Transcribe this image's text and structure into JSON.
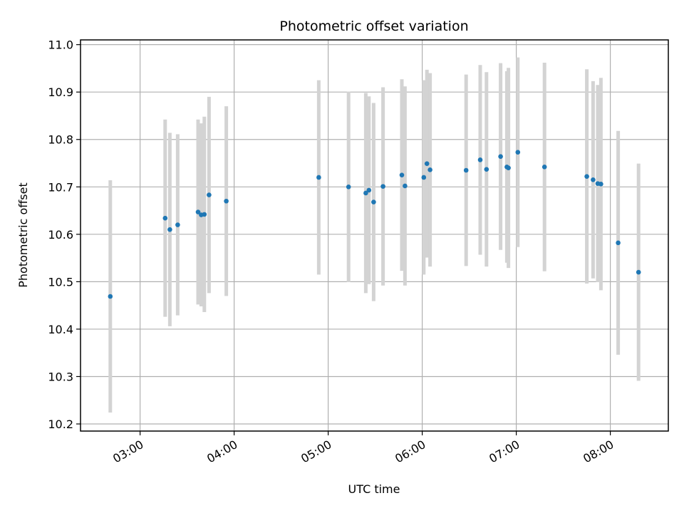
{
  "chart_data": {
    "type": "scatter",
    "title": "Photometric offset variation",
    "xlabel": "UTC time",
    "ylabel": "Photometric offset",
    "grid": true,
    "x_unit": "UTC time (HH:MM)",
    "xlim": [
      "02:22",
      "08:37"
    ],
    "ylim": [
      10.185,
      11.01
    ],
    "x_ticks": [
      "03:00",
      "04:00",
      "05:00",
      "06:00",
      "07:00",
      "08:00"
    ],
    "y_ticks": [
      10.2,
      10.3,
      10.4,
      10.5,
      10.6,
      10.7,
      10.8,
      10.9,
      11.0
    ],
    "y_tick_labels": [
      "10.2",
      "10.3",
      "10.4",
      "10.5",
      "10.6",
      "10.7",
      "10.8",
      "10.9",
      "11.0"
    ],
    "point_color": "#1f77b4",
    "errorbar_color": "#d3d3d3",
    "points": [
      {
        "t": "02:41",
        "y": 10.469,
        "err": 0.245
      },
      {
        "t": "03:16",
        "y": 10.634,
        "err": 0.208
      },
      {
        "t": "03:19",
        "y": 10.61,
        "err": 0.204
      },
      {
        "t": "03:24",
        "y": 10.62,
        "err": 0.191
      },
      {
        "t": "03:37",
        "y": 10.647,
        "err": 0.195
      },
      {
        "t": "03:39",
        "y": 10.641,
        "err": 0.193
      },
      {
        "t": "03:41",
        "y": 10.642,
        "err": 0.206
      },
      {
        "t": "03:44",
        "y": 10.683,
        "err": 0.207
      },
      {
        "t": "03:55",
        "y": 10.67,
        "err": 0.2
      },
      {
        "t": "04:54",
        "y": 10.72,
        "err": 0.205
      },
      {
        "t": "05:13",
        "y": 10.7,
        "err": 0.201
      },
      {
        "t": "05:24",
        "y": 10.687,
        "err": 0.211
      },
      {
        "t": "05:26",
        "y": 10.693,
        "err": 0.198
      },
      {
        "t": "05:29",
        "y": 10.668,
        "err": 0.209
      },
      {
        "t": "05:35",
        "y": 10.701,
        "err": 0.209
      },
      {
        "t": "05:47",
        "y": 10.725,
        "err": 0.202
      },
      {
        "t": "05:49",
        "y": 10.702,
        "err": 0.21
      },
      {
        "t": "06:01",
        "y": 10.72,
        "err": 0.205
      },
      {
        "t": "06:03",
        "y": 10.749,
        "err": 0.198
      },
      {
        "t": "06:05",
        "y": 10.736,
        "err": 0.204
      },
      {
        "t": "06:28",
        "y": 10.735,
        "err": 0.202
      },
      {
        "t": "06:37",
        "y": 10.757,
        "err": 0.2
      },
      {
        "t": "06:41",
        "y": 10.737,
        "err": 0.205
      },
      {
        "t": "06:50",
        "y": 10.764,
        "err": 0.197
      },
      {
        "t": "06:54",
        "y": 10.742,
        "err": 0.202
      },
      {
        "t": "06:55",
        "y": 10.74,
        "err": 0.211
      },
      {
        "t": "07:01",
        "y": 10.773,
        "err": 0.2
      },
      {
        "t": "07:18",
        "y": 10.742,
        "err": 0.22
      },
      {
        "t": "07:45",
        "y": 10.722,
        "err": 0.226
      },
      {
        "t": "07:49",
        "y": 10.715,
        "err": 0.208
      },
      {
        "t": "07:52",
        "y": 10.707,
        "err": 0.208
      },
      {
        "t": "07:54",
        "y": 10.706,
        "err": 0.224
      },
      {
        "t": "08:05",
        "y": 10.582,
        "err": 0.236
      },
      {
        "t": "08:18",
        "y": 10.52,
        "err": 0.229
      }
    ]
  }
}
